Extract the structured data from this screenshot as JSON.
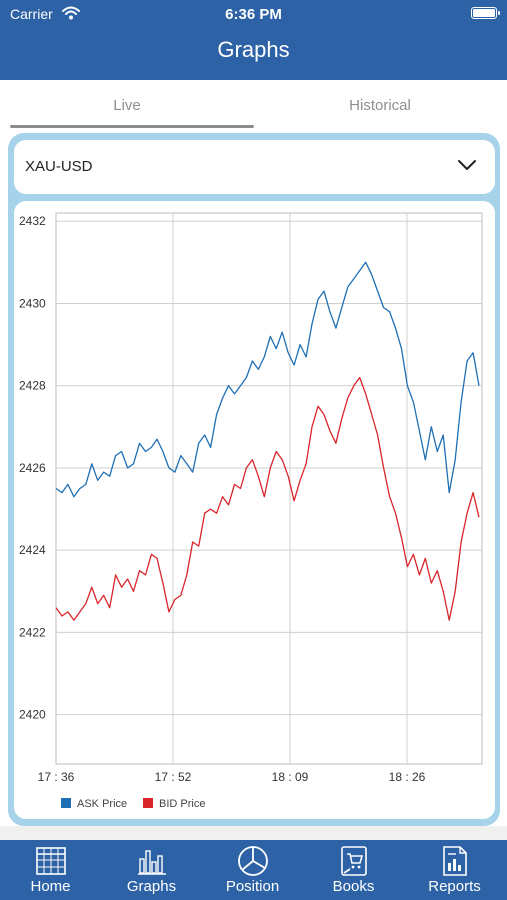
{
  "status_bar": {
    "carrier": "Carrier",
    "time": "6:36 PM"
  },
  "header": {
    "title": "Graphs"
  },
  "tabs": [
    {
      "label": "Live",
      "active": true
    },
    {
      "label": "Historical",
      "active": false
    }
  ],
  "selector": {
    "value": "XAU-USD"
  },
  "colors": {
    "brand": "#2d62a6",
    "ask": "#1f6fb4",
    "bid": "#d9252a",
    "panel": "#a6d3ea"
  },
  "bottom_nav": [
    {
      "label": "Home",
      "icon": "grid-calendar-icon"
    },
    {
      "label": "Graphs",
      "icon": "bar-chart-icon"
    },
    {
      "label": "Position",
      "icon": "pie-chart-icon"
    },
    {
      "label": "Books",
      "icon": "cart-document-icon"
    },
    {
      "label": "Reports",
      "icon": "report-document-icon"
    }
  ],
  "chart_data": {
    "type": "line",
    "x_tick_labels": [
      "17 : 36",
      "17 : 52",
      "18 : 09",
      "18 : 26"
    ],
    "y_ticks": [
      2420,
      2422,
      2424,
      2426,
      2428,
      2430,
      2432
    ],
    "ylim": [
      2418.8,
      2432.2
    ],
    "xlim": [
      0,
      100
    ],
    "grid": true,
    "legend_position": "bottom-left",
    "series": [
      {
        "name": "ASK Price",
        "color": "#1f6fb4",
        "points": [
          [
            0,
            2425.5
          ],
          [
            1.4,
            2425.4
          ],
          [
            2.8,
            2425.6
          ],
          [
            4.2,
            2425.3
          ],
          [
            5.6,
            2425.5
          ],
          [
            7.0,
            2425.6
          ],
          [
            8.4,
            2426.1
          ],
          [
            9.8,
            2425.7
          ],
          [
            11.2,
            2425.9
          ],
          [
            12.6,
            2425.8
          ],
          [
            14.0,
            2426.3
          ],
          [
            15.4,
            2426.4
          ],
          [
            16.8,
            2426.0
          ],
          [
            18.2,
            2426.1
          ],
          [
            19.6,
            2426.6
          ],
          [
            21.0,
            2426.4
          ],
          [
            22.4,
            2426.5
          ],
          [
            23.7,
            2426.7
          ],
          [
            25.1,
            2426.4
          ],
          [
            26.5,
            2426.0
          ],
          [
            27.9,
            2425.9
          ],
          [
            29.3,
            2426.3
          ],
          [
            30.7,
            2426.1
          ],
          [
            32.1,
            2425.9
          ],
          [
            33.5,
            2426.6
          ],
          [
            34.9,
            2426.8
          ],
          [
            36.3,
            2426.5
          ],
          [
            37.7,
            2427.3
          ],
          [
            39.1,
            2427.7
          ],
          [
            40.5,
            2428.0
          ],
          [
            41.9,
            2427.8
          ],
          [
            43.3,
            2428.0
          ],
          [
            44.7,
            2428.2
          ],
          [
            46.1,
            2428.6
          ],
          [
            47.5,
            2428.4
          ],
          [
            48.9,
            2428.7
          ],
          [
            50.3,
            2429.2
          ],
          [
            51.7,
            2428.9
          ],
          [
            53.1,
            2429.3
          ],
          [
            54.5,
            2428.8
          ],
          [
            55.9,
            2428.5
          ],
          [
            57.3,
            2429.0
          ],
          [
            58.7,
            2428.7
          ],
          [
            60.1,
            2429.5
          ],
          [
            61.5,
            2430.1
          ],
          [
            62.9,
            2430.3
          ],
          [
            64.3,
            2429.8
          ],
          [
            65.7,
            2429.4
          ],
          [
            67.1,
            2429.9
          ],
          [
            68.5,
            2430.4
          ],
          [
            69.9,
            2430.6
          ],
          [
            71.3,
            2430.8
          ],
          [
            72.7,
            2431.0
          ],
          [
            74.1,
            2430.7
          ],
          [
            75.5,
            2430.3
          ],
          [
            76.9,
            2429.9
          ],
          [
            78.3,
            2429.8
          ],
          [
            79.7,
            2429.4
          ],
          [
            81.1,
            2428.9
          ],
          [
            82.5,
            2428.0
          ],
          [
            83.9,
            2427.6
          ],
          [
            85.3,
            2426.9
          ],
          [
            86.7,
            2426.2
          ],
          [
            88.1,
            2427.0
          ],
          [
            89.5,
            2426.4
          ],
          [
            90.9,
            2426.8
          ],
          [
            92.3,
            2425.4
          ],
          [
            93.7,
            2426.2
          ],
          [
            95.1,
            2427.6
          ],
          [
            96.5,
            2428.6
          ],
          [
            97.9,
            2428.8
          ],
          [
            99.3,
            2428.0
          ]
        ]
      },
      {
        "name": "BID Price",
        "color": "#d9252a",
        "points": [
          [
            0,
            2422.6
          ],
          [
            1.4,
            2422.4
          ],
          [
            2.8,
            2422.5
          ],
          [
            4.2,
            2422.3
          ],
          [
            5.6,
            2422.5
          ],
          [
            7.0,
            2422.7
          ],
          [
            8.4,
            2423.1
          ],
          [
            9.8,
            2422.7
          ],
          [
            11.2,
            2422.9
          ],
          [
            12.6,
            2422.6
          ],
          [
            14.0,
            2423.4
          ],
          [
            15.4,
            2423.1
          ],
          [
            16.8,
            2423.3
          ],
          [
            18.2,
            2423.0
          ],
          [
            19.6,
            2423.5
          ],
          [
            21.0,
            2423.4
          ],
          [
            22.4,
            2423.9
          ],
          [
            23.7,
            2423.8
          ],
          [
            25.1,
            2423.2
          ],
          [
            26.5,
            2422.5
          ],
          [
            27.9,
            2422.8
          ],
          [
            29.3,
            2422.9
          ],
          [
            30.7,
            2423.4
          ],
          [
            32.1,
            2424.2
          ],
          [
            33.5,
            2424.1
          ],
          [
            34.9,
            2424.9
          ],
          [
            36.3,
            2425.0
          ],
          [
            37.7,
            2424.9
          ],
          [
            39.1,
            2425.3
          ],
          [
            40.5,
            2425.1
          ],
          [
            41.9,
            2425.6
          ],
          [
            43.3,
            2425.5
          ],
          [
            44.7,
            2426.0
          ],
          [
            46.1,
            2426.2
          ],
          [
            47.5,
            2425.8
          ],
          [
            48.9,
            2425.3
          ],
          [
            50.3,
            2426.0
          ],
          [
            51.7,
            2426.4
          ],
          [
            53.1,
            2426.2
          ],
          [
            54.5,
            2425.8
          ],
          [
            55.9,
            2425.2
          ],
          [
            57.3,
            2425.7
          ],
          [
            58.7,
            2426.1
          ],
          [
            60.1,
            2427.0
          ],
          [
            61.5,
            2427.5
          ],
          [
            62.9,
            2427.3
          ],
          [
            64.3,
            2426.9
          ],
          [
            65.7,
            2426.6
          ],
          [
            67.1,
            2427.2
          ],
          [
            68.5,
            2427.7
          ],
          [
            69.9,
            2428.0
          ],
          [
            71.3,
            2428.2
          ],
          [
            72.7,
            2427.8
          ],
          [
            74.1,
            2427.3
          ],
          [
            75.5,
            2426.8
          ],
          [
            76.9,
            2426.0
          ],
          [
            78.3,
            2425.3
          ],
          [
            79.7,
            2424.9
          ],
          [
            81.1,
            2424.3
          ],
          [
            82.5,
            2423.6
          ],
          [
            83.9,
            2423.9
          ],
          [
            85.3,
            2423.4
          ],
          [
            86.7,
            2423.8
          ],
          [
            88.1,
            2423.2
          ],
          [
            89.5,
            2423.5
          ],
          [
            90.9,
            2423.0
          ],
          [
            92.3,
            2422.3
          ],
          [
            93.7,
            2423.0
          ],
          [
            95.1,
            2424.2
          ],
          [
            96.5,
            2424.9
          ],
          [
            97.9,
            2425.4
          ],
          [
            99.3,
            2424.8
          ]
        ]
      }
    ]
  }
}
